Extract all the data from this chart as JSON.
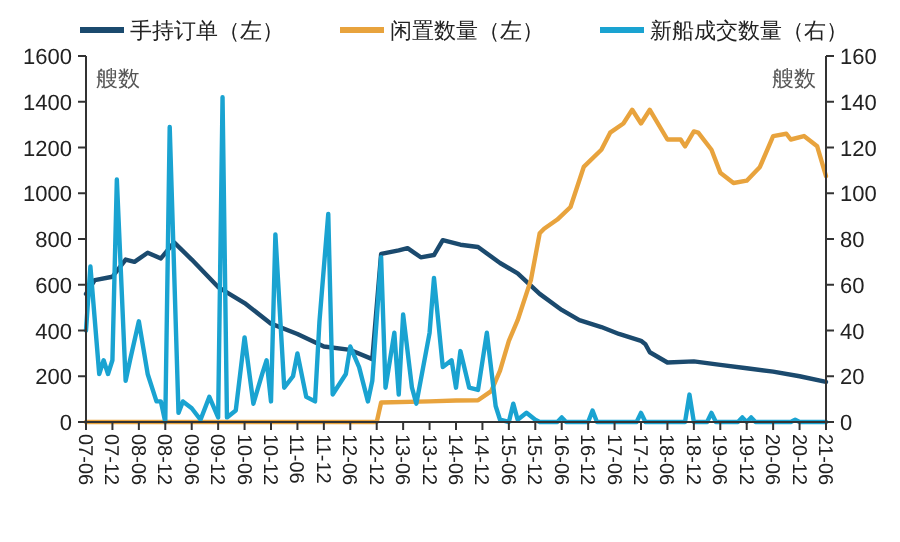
{
  "chart_data": {
    "type": "line",
    "ylabel": "艘数",
    "y2label": "艘数",
    "legend": "top",
    "grid": false,
    "marker": "none",
    "line_style": "solid",
    "xlim": [
      "2007-06",
      "2021-06"
    ],
    "xticks": [
      {
        "value": "2007-06",
        "label": "07-06"
      },
      {
        "value": "2007-12",
        "label": "07-12"
      },
      {
        "value": "2008-06",
        "label": "08-06"
      },
      {
        "value": "2008-12",
        "label": "08-12"
      },
      {
        "value": "2009-06",
        "label": "09-06"
      },
      {
        "value": "2009-12",
        "label": "09-12"
      },
      {
        "value": "2010-06",
        "label": "10-06"
      },
      {
        "value": "2010-12",
        "label": "10-12"
      },
      {
        "value": "2011-06",
        "label": "11-06"
      },
      {
        "value": "2011-12",
        "label": "11-12"
      },
      {
        "value": "2012-06",
        "label": "12-06"
      },
      {
        "value": "2012-12",
        "label": "12-12"
      },
      {
        "value": "2013-06",
        "label": "13-06"
      },
      {
        "value": "2013-12",
        "label": "13-12"
      },
      {
        "value": "2014-06",
        "label": "14-06"
      },
      {
        "value": "2014-12",
        "label": "14-12"
      },
      {
        "value": "2015-06",
        "label": "15-06"
      },
      {
        "value": "2015-12",
        "label": "15-12"
      },
      {
        "value": "2016-06",
        "label": "16-06"
      },
      {
        "value": "2016-12",
        "label": "16-12"
      },
      {
        "value": "2017-06",
        "label": "17-06"
      },
      {
        "value": "2017-12",
        "label": "17-12"
      },
      {
        "value": "2018-06",
        "label": "18-06"
      },
      {
        "value": "2018-12",
        "label": "18-12"
      },
      {
        "value": "2019-06",
        "label": "19-06"
      },
      {
        "value": "2019-12",
        "label": "19-12"
      },
      {
        "value": "2020-06",
        "label": "20-06"
      },
      {
        "value": "2020-12",
        "label": "20-12"
      },
      {
        "value": "2021-06",
        "label": "21-06"
      }
    ],
    "ylim": [
      0,
      1600
    ],
    "yticks": [
      0,
      200,
      400,
      600,
      800,
      1000,
      1200,
      1400,
      1600
    ],
    "y2lim": [
      0,
      160
    ],
    "y2ticks": [
      0,
      20,
      40,
      60,
      80,
      100,
      120,
      140,
      160
    ],
    "series": [
      {
        "name": "手持订单（左）",
        "color": "#1b4a6e",
        "x": [
          "2007-06",
          "2007-08",
          "2007-12",
          "2008-03",
          "2008-05",
          "2008-08",
          "2008-11",
          "2009-02",
          "2009-06",
          "2009-12",
          "2010-06",
          "2010-12",
          "2011-06",
          "2011-12",
          "2012-06",
          "2012-11",
          "2013-01",
          "2013-05",
          "2013-07",
          "2013-10",
          "2014-01",
          "2014-03",
          "2014-07",
          "2014-11",
          "2015-04",
          "2015-08",
          "2016-01",
          "2016-06",
          "2016-10",
          "2017-03",
          "2017-07",
          "2017-12",
          "2018-01",
          "2018-02",
          "2018-06",
          "2018-12",
          "2019-06",
          "2019-12",
          "2020-06",
          "2020-12",
          "2021-06"
        ],
        "values": [
          560,
          620,
          635,
          710,
          700,
          740,
          715,
          785,
          710,
          590,
          520,
          430,
          385,
          330,
          315,
          275,
          735,
          750,
          760,
          720,
          730,
          795,
          775,
          765,
          695,
          650,
          560,
          490,
          445,
          415,
          385,
          355,
          340,
          305,
          260,
          265,
          250,
          235,
          220,
          200,
          175
        ]
      },
      {
        "name": "闲置数量（左）",
        "color": "#e8a33d",
        "x": [
          "2007-06",
          "2012-12",
          "2013-01",
          "2013-12",
          "2014-06",
          "2014-11",
          "2015-02",
          "2015-04",
          "2015-06",
          "2015-08",
          "2015-11",
          "2016-01",
          "2016-02",
          "2016-05",
          "2016-08",
          "2016-11",
          "2017-03",
          "2017-05",
          "2017-08",
          "2017-10",
          "2017-12",
          "2018-02",
          "2018-06",
          "2018-09",
          "2018-10",
          "2018-12",
          "2019-01",
          "2019-04",
          "2019-06",
          "2019-09",
          "2019-12",
          "2020-03",
          "2020-06",
          "2020-09",
          "2020-10",
          "2021-01",
          "2021-04",
          "2021-06"
        ],
        "values": [
          0,
          0,
          85,
          90,
          94,
          95,
          135,
          225,
          355,
          445,
          620,
          825,
          845,
          885,
          940,
          1115,
          1190,
          1265,
          1305,
          1365,
          1305,
          1365,
          1235,
          1235,
          1205,
          1270,
          1265,
          1190,
          1090,
          1045,
          1055,
          1115,
          1250,
          1260,
          1235,
          1250,
          1205,
          1075
        ]
      },
      {
        "name": "新船成交数量（右）",
        "color": "#1aa3d1",
        "axis": "y2",
        "x": [
          "2007-06",
          "2007-07",
          "2007-09",
          "2007-10",
          "2007-11",
          "2007-12",
          "2008-01",
          "2008-03",
          "2008-04",
          "2008-06",
          "2008-08",
          "2008-10",
          "2008-11",
          "2008-12",
          "2009-01",
          "2009-03",
          "2009-04",
          "2009-06",
          "2009-08",
          "2009-10",
          "2009-12",
          "2010-01",
          "2010-02",
          "2010-04",
          "2010-06",
          "2010-08",
          "2010-10",
          "2010-11",
          "2010-12",
          "2011-01",
          "2011-03",
          "2011-05",
          "2011-06",
          "2011-08",
          "2011-10",
          "2011-11",
          "2012-01",
          "2012-02",
          "2012-05",
          "2012-06",
          "2012-08",
          "2012-10",
          "2012-11",
          "2013-01",
          "2013-02",
          "2013-04",
          "2013-05",
          "2013-06",
          "2013-08",
          "2013-09",
          "2013-12",
          "2014-01",
          "2014-03",
          "2014-05",
          "2014-06",
          "2014-07",
          "2014-09",
          "2014-11",
          "2015-01",
          "2015-03",
          "2015-04",
          "2015-06",
          "2015-07",
          "2015-08",
          "2015-10",
          "2015-12",
          "2016-01",
          "2016-05",
          "2016-06",
          "2016-07",
          "2016-12",
          "2017-01",
          "2017-02",
          "2017-11",
          "2017-12",
          "2018-01",
          "2018-02",
          "2018-10",
          "2018-11",
          "2018-12",
          "2019-03",
          "2019-04",
          "2019-05",
          "2019-10",
          "2019-11",
          "2019-12",
          "2020-01",
          "2020-02",
          "2020-10",
          "2020-11",
          "2020-12",
          "2021-06"
        ],
        "values": [
          40,
          68,
          21,
          27,
          21,
          27,
          106,
          18,
          27,
          44,
          21,
          9,
          9,
          0,
          129,
          4,
          9,
          6,
          1,
          11,
          2,
          142,
          2,
          5,
          37,
          8,
          21,
          27,
          9,
          82,
          15,
          20,
          30,
          11,
          9,
          44,
          91,
          12,
          21,
          33,
          24,
          9,
          18,
          72,
          15,
          39,
          12,
          47,
          15,
          8,
          39,
          63,
          24,
          27,
          15,
          31,
          15,
          14,
          39,
          7,
          1,
          0,
          8,
          1,
          4,
          1,
          0,
          0,
          2,
          0,
          0,
          5,
          0,
          0,
          4,
          0,
          0,
          0,
          12,
          0,
          0,
          4,
          0,
          0,
          2,
          0,
          2,
          0,
          0,
          1,
          0,
          0
        ]
      }
    ]
  }
}
